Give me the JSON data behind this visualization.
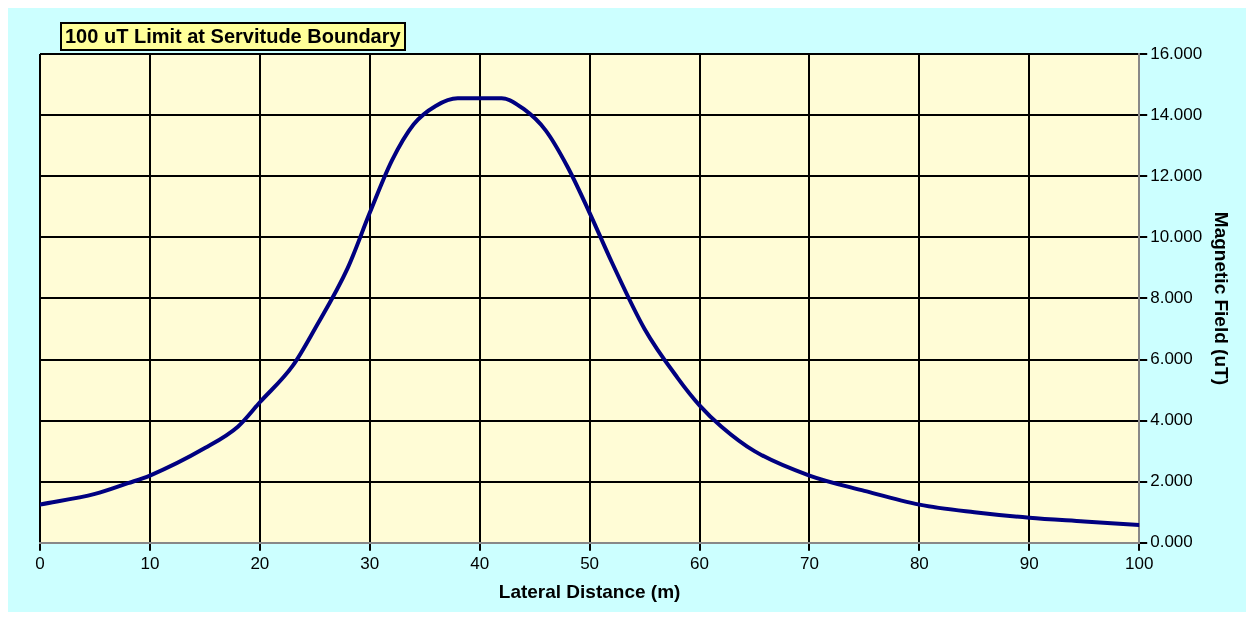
{
  "chart_data": {
    "type": "line",
    "title": "100 uT Limit at Servitude Boundary",
    "xlabel": "Lateral Distance (m)",
    "ylabel": "Magnetic Field (uT)",
    "x": [
      0,
      5,
      8,
      10,
      15,
      18,
      20,
      23,
      25,
      28,
      30,
      32,
      34,
      36,
      38,
      40,
      42,
      44,
      46,
      48,
      50,
      52,
      55,
      58,
      60,
      62,
      65,
      70,
      75,
      80,
      85,
      90,
      95,
      100
    ],
    "series": [
      {
        "color": "#000080",
        "values": [
          1.25,
          1.6,
          1.95,
          2.2,
          3.1,
          3.8,
          4.6,
          5.8,
          7.0,
          9.0,
          10.8,
          12.5,
          13.7,
          14.3,
          14.55,
          14.55,
          14.55,
          14.2,
          13.5,
          12.3,
          10.8,
          9.2,
          7.0,
          5.4,
          4.5,
          3.8,
          3.0,
          2.2,
          1.7,
          1.25,
          1.0,
          0.82,
          0.7,
          0.58
        ]
      }
    ],
    "xlim": [
      0,
      100
    ],
    "xticks": [
      0,
      10,
      20,
      30,
      40,
      50,
      60,
      70,
      80,
      90,
      100
    ],
    "ylim": [
      0,
      16
    ],
    "yticks": [
      {
        "value": 0,
        "label": "0.000"
      },
      {
        "value": 2,
        "label": "2.000"
      },
      {
        "value": 4,
        "label": "4.000"
      },
      {
        "value": 6,
        "label": "6.000"
      },
      {
        "value": 8,
        "label": "8.000"
      },
      {
        "value": 10,
        "label": "10.000"
      },
      {
        "value": 12,
        "label": "12.000"
      },
      {
        "value": 14,
        "label": "14.000"
      },
      {
        "value": 16,
        "label": "16.000"
      }
    ],
    "grid": true,
    "legend": false,
    "marker": "none",
    "line_style": "solid"
  }
}
